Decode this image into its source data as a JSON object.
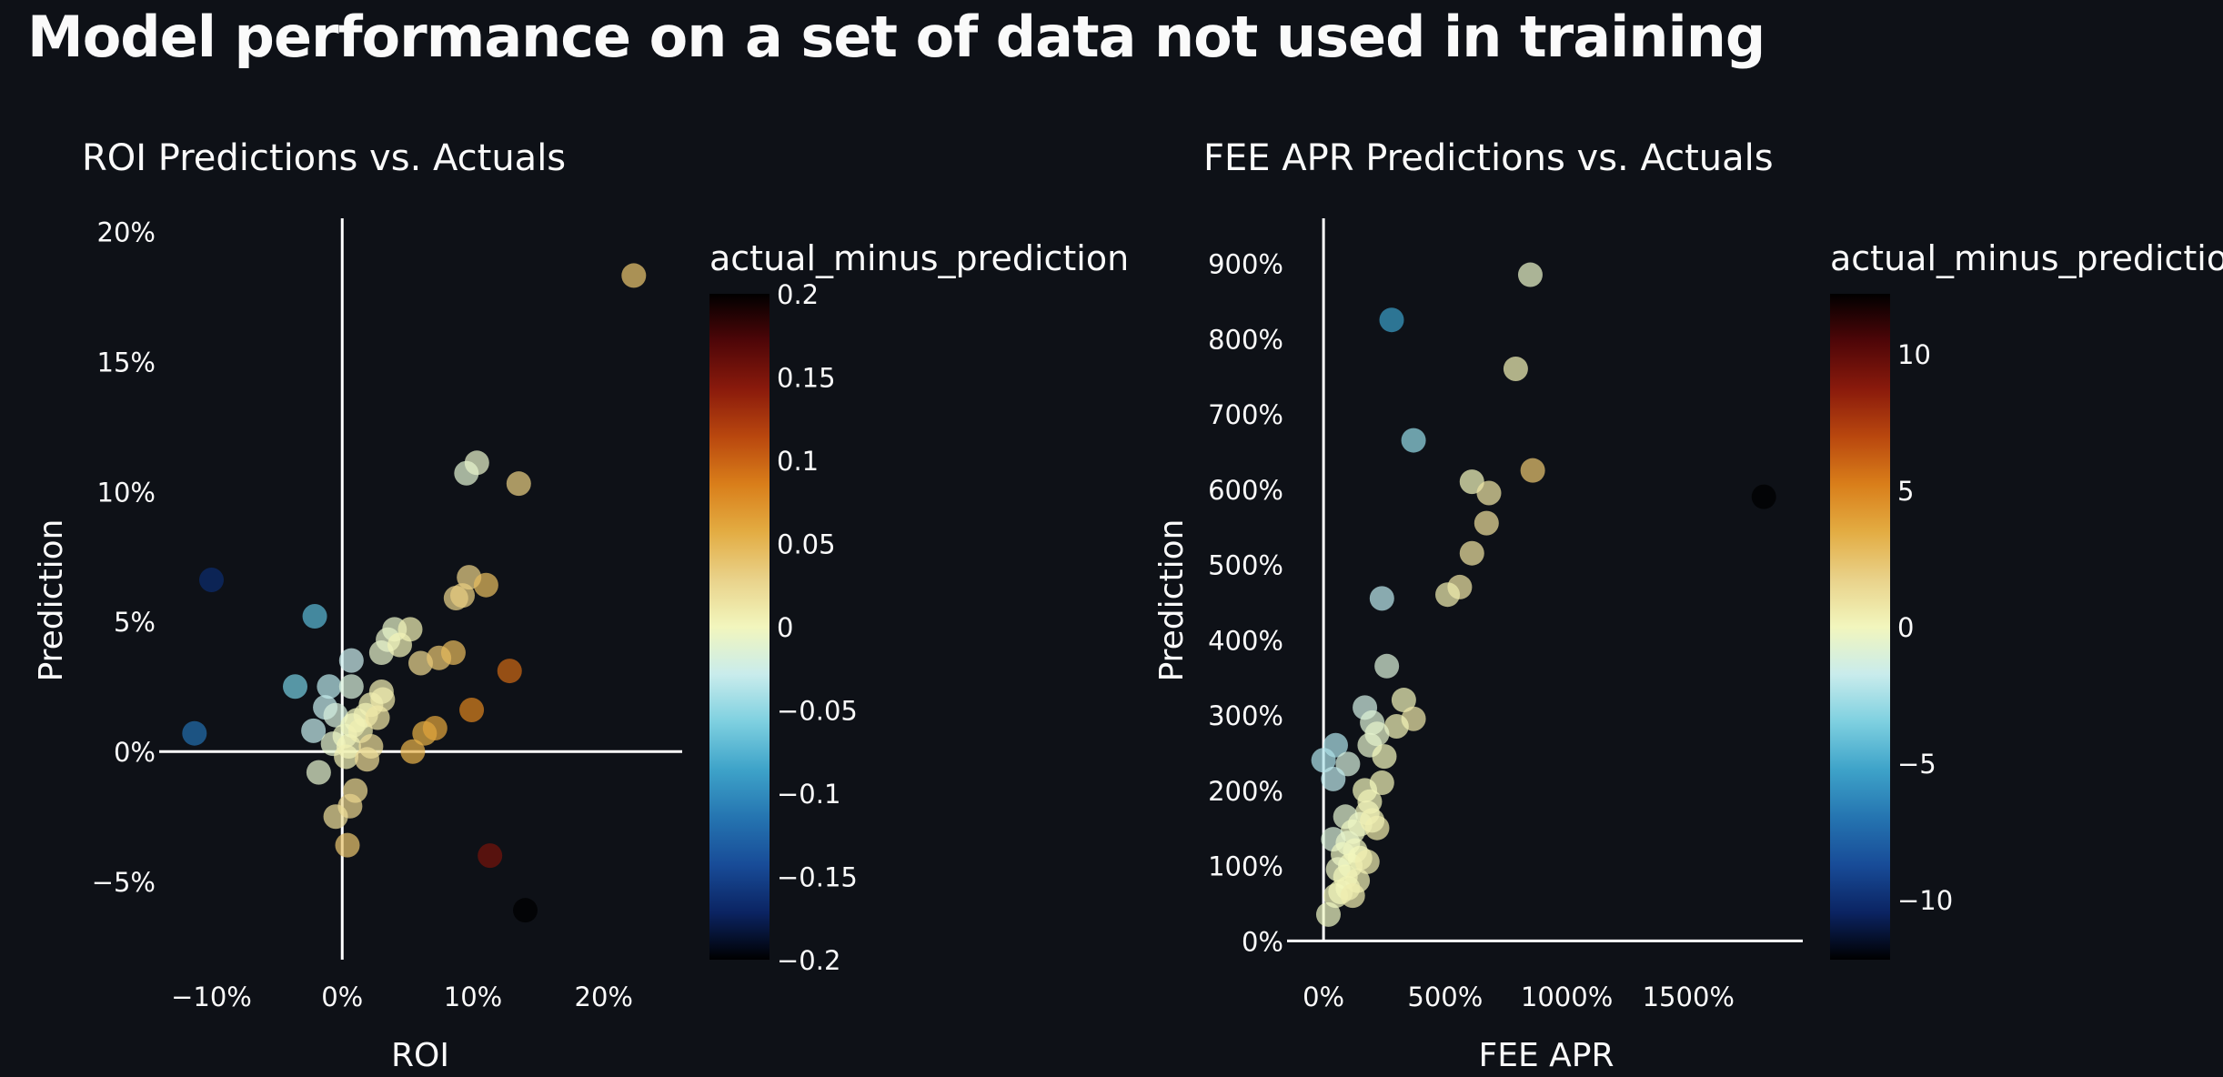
{
  "page": {
    "title": "Model performance on a set of data not used in training"
  },
  "colorscale": {
    "name": "balance",
    "stops": [
      "#f2f6bd",
      "#e9d28a",
      "#e3ac42",
      "#d97e1a",
      "#b9470e",
      "#8a1a0c",
      "#4f0608",
      "#000000"
    ],
    "neg_stops": [
      "#f2f6bd",
      "#c9ecec",
      "#7ed0e0",
      "#3ea3c9",
      "#2575b1",
      "#184c98",
      "#0b2463",
      "#000000"
    ]
  },
  "chart_data": [
    {
      "type": "scatter",
      "title": "ROI Predictions vs. Actuals",
      "xlabel": "ROI",
      "ylabel": "Prediction",
      "xlim": [
        -0.14,
        0.26
      ],
      "ylim": [
        -0.08,
        0.205
      ],
      "x_ticks": [
        -0.1,
        0,
        0.1,
        0.2
      ],
      "x_tick_labels": [
        "−10%",
        "0%",
        "10%",
        "20%"
      ],
      "y_ticks": [
        -0.05,
        0,
        0.05,
        0.1,
        0.15,
        0.2
      ],
      "y_tick_labels": [
        "−5%",
        "0%",
        "5%",
        "10%",
        "15%",
        "20%"
      ],
      "colorbar": {
        "title": "actual_minus_prediction",
        "range": [
          -0.2,
          0.2
        ],
        "ticks": [
          -0.2,
          -0.15,
          -0.1,
          -0.05,
          0,
          0.05,
          0.1,
          0.15,
          0.2
        ],
        "tick_labels": [
          "−0.2",
          "−0.15",
          "−0.1",
          "−0.05",
          "0",
          "0.05",
          "0.1",
          "0.15",
          "0.2"
        ]
      },
      "points": [
        {
          "x": 0.223,
          "y": 0.183,
          "c": 0.04
        },
        {
          "x": -0.1,
          "y": 0.066,
          "c": -0.166
        },
        {
          "x": -0.113,
          "y": 0.007,
          "c": -0.12
        },
        {
          "x": -0.021,
          "y": 0.052,
          "c": -0.073
        },
        {
          "x": -0.036,
          "y": 0.025,
          "c": -0.061
        },
        {
          "x": -0.01,
          "y": 0.025,
          "c": -0.035
        },
        {
          "x": 0.007,
          "y": 0.025,
          "c": -0.018
        },
        {
          "x": 0.007,
          "y": 0.035,
          "c": -0.028
        },
        {
          "x": -0.013,
          "y": 0.017,
          "c": -0.03
        },
        {
          "x": -0.005,
          "y": 0.014,
          "c": -0.019
        },
        {
          "x": -0.022,
          "y": 0.008,
          "c": -0.03
        },
        {
          "x": -0.018,
          "y": -0.008,
          "c": -0.01
        },
        {
          "x": -0.007,
          "y": 0.003,
          "c": -0.01
        },
        {
          "x": 0.002,
          "y": 0.006,
          "c": -0.004
        },
        {
          "x": 0.005,
          "y": 0.002,
          "c": 0.003
        },
        {
          "x": 0.008,
          "y": 0.01,
          "c": -0.002
        },
        {
          "x": 0.011,
          "y": 0.012,
          "c": -0.001
        },
        {
          "x": 0.014,
          "y": 0.008,
          "c": 0.006
        },
        {
          "x": 0.003,
          "y": -0.002,
          "c": 0.005
        },
        {
          "x": 0.018,
          "y": 0.014,
          "c": 0.004
        },
        {
          "x": 0.022,
          "y": 0.018,
          "c": 0.004
        },
        {
          "x": 0.027,
          "y": 0.013,
          "c": 0.014
        },
        {
          "x": 0.031,
          "y": 0.02,
          "c": 0.011
        },
        {
          "x": 0.019,
          "y": -0.003,
          "c": 0.022
        },
        {
          "x": 0.022,
          "y": 0.002,
          "c": 0.02
        },
        {
          "x": 0.01,
          "y": -0.015,
          "c": 0.025
        },
        {
          "x": 0.006,
          "y": -0.021,
          "c": 0.027
        },
        {
          "x": -0.005,
          "y": -0.025,
          "c": 0.02
        },
        {
          "x": 0.004,
          "y": -0.036,
          "c": 0.04
        },
        {
          "x": 0.03,
          "y": 0.023,
          "c": 0.007
        },
        {
          "x": 0.03,
          "y": 0.038,
          "c": -0.008
        },
        {
          "x": 0.035,
          "y": 0.043,
          "c": -0.008
        },
        {
          "x": 0.04,
          "y": 0.047,
          "c": -0.007
        },
        {
          "x": 0.044,
          "y": 0.041,
          "c": 0.003
        },
        {
          "x": 0.052,
          "y": 0.047,
          "c": 0.005
        },
        {
          "x": 0.06,
          "y": 0.034,
          "c": 0.026
        },
        {
          "x": 0.074,
          "y": 0.036,
          "c": 0.038
        },
        {
          "x": 0.085,
          "y": 0.038,
          "c": 0.047
        },
        {
          "x": 0.063,
          "y": 0.007,
          "c": 0.056
        },
        {
          "x": 0.071,
          "y": 0.009,
          "c": 0.062
        },
        {
          "x": 0.054,
          "y": 0.0,
          "c": 0.054
        },
        {
          "x": 0.095,
          "y": 0.107,
          "c": -0.012
        },
        {
          "x": 0.103,
          "y": 0.111,
          "c": -0.008
        },
        {
          "x": 0.087,
          "y": 0.059,
          "c": 0.028
        },
        {
          "x": 0.097,
          "y": 0.067,
          "c": 0.03
        },
        {
          "x": 0.092,
          "y": 0.06,
          "c": 0.032
        },
        {
          "x": 0.11,
          "y": 0.064,
          "c": 0.046
        },
        {
          "x": 0.135,
          "y": 0.103,
          "c": 0.032
        },
        {
          "x": 0.099,
          "y": 0.016,
          "c": 0.083
        },
        {
          "x": 0.128,
          "y": 0.031,
          "c": 0.097
        },
        {
          "x": 0.113,
          "y": -0.04,
          "c": 0.153
        },
        {
          "x": 0.14,
          "y": -0.061,
          "c": 0.2
        }
      ]
    },
    {
      "type": "scatter",
      "title": "FEE APR Predictions vs. Actuals",
      "xlabel": "FEE APR",
      "ylabel": "Prediction",
      "xlim": [
        -150,
        1970
      ],
      "ylim": [
        -25,
        960
      ],
      "x_ticks": [
        0,
        500,
        1000,
        1500
      ],
      "x_tick_labels": [
        "0%",
        "500%",
        "1000%",
        "1500%"
      ],
      "y_ticks": [
        0,
        100,
        200,
        300,
        400,
        500,
        600,
        700,
        800,
        900
      ],
      "y_tick_labels": [
        "0%",
        "100%",
        "200%",
        "300%",
        "400%",
        "500%",
        "600%",
        "700%",
        "800%",
        "900%"
      ],
      "colorbar": {
        "title": "actual_minus_prediction",
        "range": [
          -12.2,
          12.2
        ],
        "ticks": [
          -10,
          -5,
          0,
          5,
          10
        ],
        "tick_labels": [
          "−10",
          "−5",
          "0",
          "5",
          "10"
        ]
      },
      "points": [
        {
          "x": 850,
          "y": 885,
          "c": -0.4
        },
        {
          "x": 280,
          "y": 825,
          "c": -5.5
        },
        {
          "x": 790,
          "y": 760,
          "c": 0.3
        },
        {
          "x": 370,
          "y": 665,
          "c": -3
        },
        {
          "x": 860,
          "y": 625,
          "c": 2.4
        },
        {
          "x": 610,
          "y": 610,
          "c": 0
        },
        {
          "x": 680,
          "y": 595,
          "c": 0.9
        },
        {
          "x": 1810,
          "y": 590,
          "c": 12.2
        },
        {
          "x": 670,
          "y": 555,
          "c": 1.2
        },
        {
          "x": 610,
          "y": 515,
          "c": 1
        },
        {
          "x": 560,
          "y": 470,
          "c": 0.9
        },
        {
          "x": 510,
          "y": 460,
          "c": 0.5
        },
        {
          "x": 240,
          "y": 455,
          "c": -2.1
        },
        {
          "x": 260,
          "y": 365,
          "c": -1
        },
        {
          "x": 330,
          "y": 320,
          "c": 0.1
        },
        {
          "x": 370,
          "y": 295,
          "c": 0.7
        },
        {
          "x": 300,
          "y": 285,
          "c": 0.2
        },
        {
          "x": 170,
          "y": 310,
          "c": -1.4
        },
        {
          "x": 200,
          "y": 290,
          "c": -0.9
        },
        {
          "x": 220,
          "y": 275,
          "c": -0.5
        },
        {
          "x": 190,
          "y": 260,
          "c": -0.6
        },
        {
          "x": 250,
          "y": 245,
          "c": 0
        },
        {
          "x": 240,
          "y": 210,
          "c": 0.2
        },
        {
          "x": 50,
          "y": 260,
          "c": -2.4
        },
        {
          "x": 0,
          "y": 240,
          "c": -2.4
        },
        {
          "x": 100,
          "y": 235,
          "c": -1.2
        },
        {
          "x": 40,
          "y": 215,
          "c": -2
        },
        {
          "x": 170,
          "y": 200,
          "c": 0
        },
        {
          "x": 190,
          "y": 185,
          "c": 0.1
        },
        {
          "x": 180,
          "y": 170,
          "c": 0.1
        },
        {
          "x": 90,
          "y": 165,
          "c": -0.7
        },
        {
          "x": 150,
          "y": 155,
          "c": -0.3
        },
        {
          "x": 120,
          "y": 145,
          "c": -0.2
        },
        {
          "x": 220,
          "y": 150,
          "c": 0.6
        },
        {
          "x": 200,
          "y": 160,
          "c": 0.3
        },
        {
          "x": 40,
          "y": 135,
          "c": -1
        },
        {
          "x": 100,
          "y": 130,
          "c": -0.4
        },
        {
          "x": 130,
          "y": 120,
          "c": -0.1
        },
        {
          "x": 80,
          "y": 115,
          "c": -0.2
        },
        {
          "x": 150,
          "y": 110,
          "c": 0
        },
        {
          "x": 110,
          "y": 100,
          "c": 0
        },
        {
          "x": 180,
          "y": 105,
          "c": 0.5
        },
        {
          "x": 60,
          "y": 95,
          "c": -0.3
        },
        {
          "x": 90,
          "y": 85,
          "c": 0
        },
        {
          "x": 140,
          "y": 80,
          "c": 0.3
        },
        {
          "x": 100,
          "y": 70,
          "c": 0.2
        },
        {
          "x": 70,
          "y": 65,
          "c": 0.1
        },
        {
          "x": 50,
          "y": 60,
          "c": 0
        },
        {
          "x": 120,
          "y": 60,
          "c": 0.5
        },
        {
          "x": 20,
          "y": 35,
          "c": -0.2
        }
      ]
    }
  ]
}
